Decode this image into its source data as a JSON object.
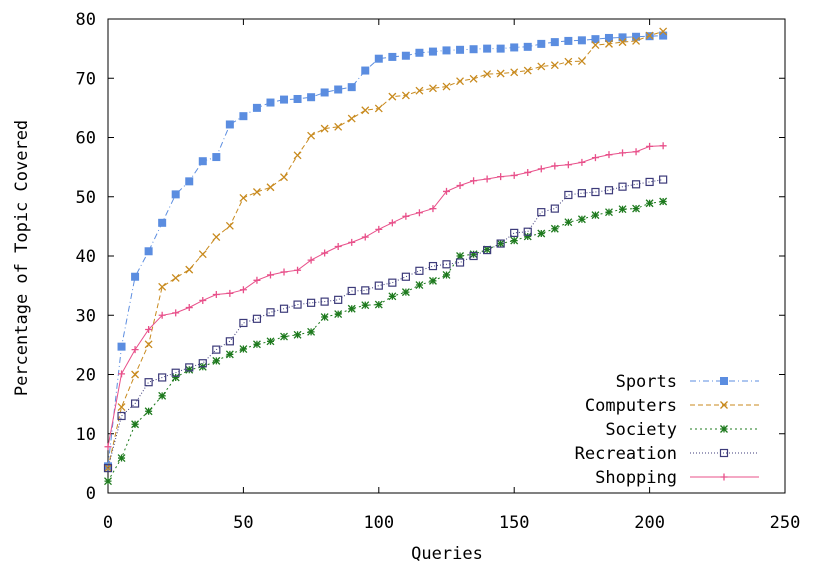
{
  "chart_data": {
    "type": "line",
    "title": "",
    "xlabel": "Queries",
    "ylabel": "Percentage of Topic Covered",
    "xlim": [
      0,
      250
    ],
    "ylim": [
      0,
      80
    ],
    "xticks": [
      0,
      50,
      100,
      150,
      200,
      250
    ],
    "yticks": [
      0,
      10,
      20,
      30,
      40,
      50,
      60,
      70,
      80
    ],
    "grid": false,
    "legend_position": "bottom-right",
    "x": [
      0,
      5,
      10,
      15,
      20,
      25,
      30,
      35,
      40,
      45,
      50,
      55,
      60,
      65,
      70,
      75,
      80,
      85,
      90,
      95,
      100,
      105,
      110,
      115,
      120,
      125,
      130,
      135,
      140,
      145,
      150,
      155,
      160,
      165,
      170,
      175,
      180,
      185,
      190,
      195,
      200,
      205
    ],
    "series": [
      {
        "name": "Sports",
        "color": "#5b8de0",
        "marker": "filled-square",
        "dash": "dash-dot",
        "values": [
          4.5,
          24.7,
          36.5,
          40.8,
          45.6,
          50.4,
          52.6,
          56.0,
          56.7,
          62.2,
          63.6,
          65.0,
          65.9,
          66.4,
          66.5,
          66.8,
          67.6,
          68.1,
          68.5,
          71.3,
          73.3,
          73.6,
          73.8,
          74.3,
          74.5,
          74.7,
          74.8,
          74.9,
          75.0,
          75.0,
          75.2,
          75.3,
          75.8,
          76.1,
          76.3,
          76.4,
          76.6,
          76.8,
          76.9,
          77.0,
          77.1,
          77.2
        ]
      },
      {
        "name": "Computers",
        "color": "#c88a1e",
        "marker": "x",
        "dash": "dashed",
        "values": [
          4.2,
          14.5,
          20.0,
          25.1,
          34.8,
          36.3,
          37.7,
          40.3,
          43.2,
          45.1,
          49.8,
          50.8,
          51.6,
          53.3,
          57.0,
          60.3,
          61.5,
          61.8,
          63.2,
          64.6,
          64.9,
          66.9,
          67.1,
          67.9,
          68.3,
          68.6,
          69.5,
          69.9,
          70.7,
          70.8,
          71.0,
          71.3,
          72.0,
          72.2,
          72.8,
          72.9,
          75.6,
          75.8,
          76.1,
          76.3,
          77.2,
          77.9
        ]
      },
      {
        "name": "Society",
        "color": "#1e7a1e",
        "marker": "asterisk",
        "dash": "dotted",
        "values": [
          2.0,
          5.9,
          11.6,
          13.8,
          16.4,
          19.5,
          20.8,
          21.3,
          22.3,
          23.4,
          24.3,
          25.1,
          25.6,
          26.4,
          26.7,
          27.2,
          29.7,
          30.2,
          31.1,
          31.7,
          31.8,
          33.2,
          33.9,
          35.1,
          35.8,
          36.8,
          40.0,
          40.3,
          41.1,
          42.1,
          42.6,
          43.3,
          43.8,
          44.6,
          45.7,
          46.2,
          46.9,
          47.4,
          47.9,
          48.0,
          48.9,
          49.2
        ]
      },
      {
        "name": "Recreation",
        "color": "#3d3b7a",
        "marker": "open-square",
        "dash": "fine-dotted",
        "values": [
          4.2,
          13.0,
          15.1,
          18.7,
          19.5,
          20.3,
          21.2,
          21.9,
          24.2,
          25.6,
          28.7,
          29.4,
          30.5,
          31.1,
          31.8,
          32.1,
          32.3,
          32.6,
          34.1,
          34.2,
          35.0,
          35.5,
          36.5,
          37.5,
          38.3,
          38.6,
          38.9,
          40.0,
          41.0,
          42.1,
          43.9,
          44.1,
          47.4,
          48.0,
          50.3,
          50.6,
          50.8,
          51.1,
          51.7,
          52.1,
          52.5,
          52.9
        ]
      },
      {
        "name": "Shopping",
        "color": "#e8508a",
        "marker": "plus",
        "dash": "solid",
        "values": [
          7.8,
          20.1,
          24.2,
          27.6,
          30.0,
          30.4,
          31.3,
          32.5,
          33.5,
          33.7,
          34.3,
          35.9,
          36.8,
          37.3,
          37.6,
          39.3,
          40.5,
          41.6,
          42.3,
          43.2,
          44.5,
          45.6,
          46.7,
          47.3,
          48.0,
          50.9,
          51.9,
          52.7,
          53.0,
          53.4,
          53.6,
          54.1,
          54.7,
          55.2,
          55.4,
          55.8,
          56.6,
          57.1,
          57.4,
          57.6,
          58.5,
          58.6
        ]
      }
    ]
  }
}
